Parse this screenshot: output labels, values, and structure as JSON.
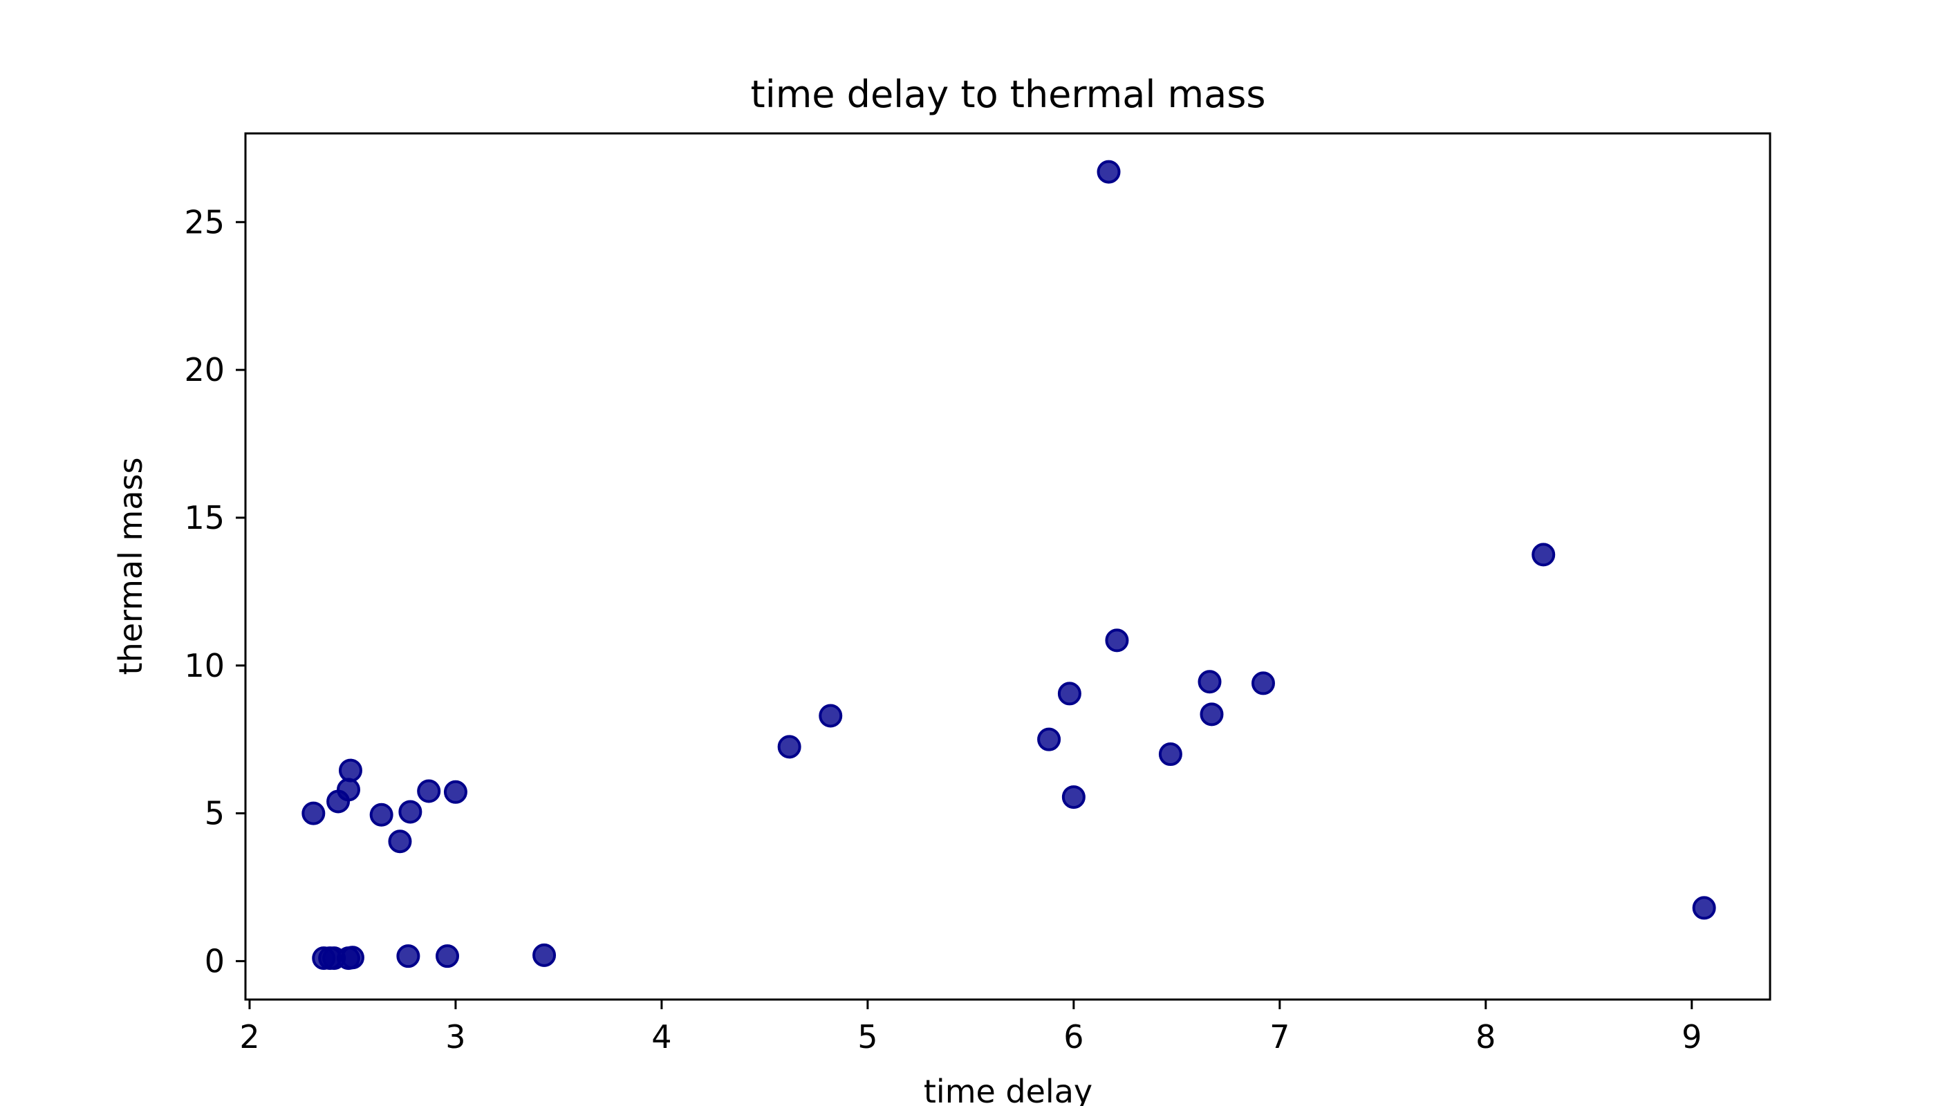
{
  "chart_data": {
    "type": "scatter",
    "title": "time delay to thermal mass",
    "xlabel": "time delay",
    "ylabel": "thermal mass",
    "xlim": [
      1.98,
      9.38
    ],
    "ylim": [
      -1.3,
      28.0
    ],
    "xticks": [
      2,
      3,
      4,
      5,
      6,
      7,
      8,
      9
    ],
    "yticks": [
      0,
      5,
      10,
      15,
      20,
      25
    ],
    "grid": false,
    "legend": "none",
    "marker_color": "#00008b",
    "series": [
      {
        "x": [
          6.17,
          8.28,
          6.21,
          6.66,
          6.92,
          5.98,
          6.67,
          4.82,
          5.88,
          4.62,
          6.47,
          2.49,
          2.48,
          2.87,
          3.0,
          6.0,
          2.43,
          2.78,
          2.31,
          2.64,
          2.73,
          9.06,
          3.43,
          2.77,
          2.96,
          2.5,
          2.48,
          2.41,
          2.36,
          2.39
        ],
        "y": [
          26.7,
          13.75,
          10.85,
          9.45,
          9.4,
          9.05,
          8.35,
          8.3,
          7.5,
          7.25,
          7.0,
          6.45,
          5.8,
          5.75,
          5.72,
          5.55,
          5.4,
          5.05,
          5.0,
          4.95,
          4.05,
          1.8,
          0.2,
          0.17,
          0.17,
          0.12,
          0.1,
          0.1,
          0.1,
          0.1
        ]
      }
    ]
  }
}
